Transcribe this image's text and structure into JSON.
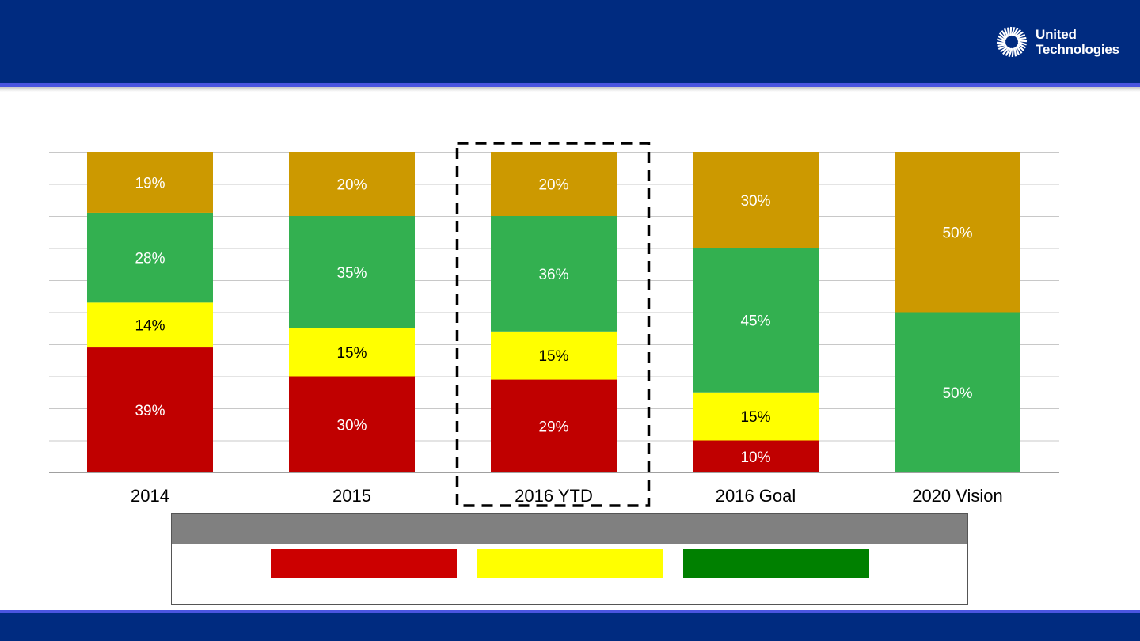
{
  "header": {
    "logo_icon": "sunburst-logo-icon",
    "logo_line1": "United",
    "logo_line2": "Technologies"
  },
  "colors": {
    "header": "#002b80",
    "accent_line": "#4a55e0",
    "segment_red": "#c00000",
    "segment_yellow": "#ffff00",
    "segment_green": "#33b050",
    "segment_gold": "#cc9900",
    "legend_red": "#cc0000",
    "legend_yellow": "#ffff00",
    "legend_green": "#008000"
  },
  "chart_data": {
    "type": "bar",
    "stacked": true,
    "categories": [
      "2014",
      "2015",
      "2016 YTD",
      "2016 Goal",
      "2020 Vision"
    ],
    "series": [
      {
        "color": "#c00000",
        "values": [
          39,
          30,
          29,
          10,
          0
        ],
        "labels": [
          "39%",
          "30%",
          "29%",
          "10%",
          ""
        ]
      },
      {
        "color": "#ffff00",
        "values": [
          14,
          15,
          15,
          15,
          0
        ],
        "labels": [
          "14%",
          "15%",
          "15%",
          "15%",
          ""
        ]
      },
      {
        "color": "#33b050",
        "values": [
          28,
          35,
          36,
          45,
          50
        ],
        "labels": [
          "28%",
          "35%",
          "36%",
          "45%",
          "50%"
        ]
      },
      {
        "color": "#cc9900",
        "values": [
          19,
          20,
          20,
          30,
          50
        ],
        "labels": [
          "19%",
          "20%",
          "20%",
          "30%",
          "50%"
        ]
      }
    ],
    "ylim": [
      0,
      100
    ],
    "grid": true,
    "highlighted_category": "2016 YTD"
  },
  "legend": {
    "swatches": [
      "#cc0000",
      "#ffff00",
      "#008000"
    ]
  }
}
